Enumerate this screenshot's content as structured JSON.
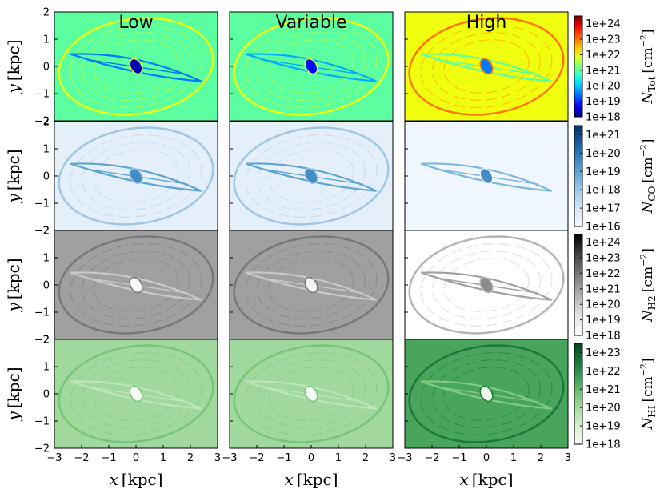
{
  "chart_data": {
    "type": "heatmap",
    "description_grid": "4 rows x 3 columns of column-density maps",
    "columns": [
      {
        "key": "low",
        "title": "Low"
      },
      {
        "key": "variable",
        "title": "Variable"
      },
      {
        "key": "high",
        "title": "High"
      }
    ],
    "rows": [
      {
        "key": "tot",
        "quantity": "N_Tot",
        "colorbar_label": "N_Tot [cm^-2]",
        "colorbar_label_main": "N",
        "colorbar_label_sub": "Tot",
        "colorbar_label_units": "[cm",
        "colorbar_label_exp": "−2",
        "colorbar_label_close": "]",
        "colormap": "jet",
        "colorbar_ticks": [
          "1e+24",
          "1e+23",
          "1e+22",
          "1e+21",
          "1e+20",
          "1e+19",
          "1e+18"
        ],
        "log_range": [
          18,
          24.5
        ],
        "panels": {
          "low": {
            "background": 21.0,
            "core": 18.3,
            "shell": 22.0,
            "filaments": 19.5
          },
          "variable": {
            "background": 21.0,
            "core": 18.8,
            "shell": 22.0,
            "filaments": 19.8
          },
          "high": {
            "background": 22.0,
            "core": 19.5,
            "shell": 23.0,
            "filaments": 21.0
          }
        }
      },
      {
        "key": "co",
        "quantity": "N_CO",
        "colorbar_label": "N_CO [cm^-2]",
        "colorbar_label_main": "N",
        "colorbar_label_sub": "CO",
        "colorbar_label_units": "[cm",
        "colorbar_label_exp": "−2",
        "colorbar_label_close": "]",
        "colormap": "Blues",
        "colorbar_ticks": [
          "1e+21",
          "1e+20",
          "1e+19",
          "1e+18",
          "1e+17",
          "1e+16"
        ],
        "log_range": [
          16,
          21.5
        ],
        "panels": {
          "low": {
            "background": 16.5,
            "core": 19.5,
            "shell": 18.0,
            "filaments": 19.0
          },
          "variable": {
            "background": 16.5,
            "core": 19.5,
            "shell": 18.0,
            "filaments": 19.0
          },
          "high": {
            "background": 16.2,
            "core": 19.5,
            "shell": 16.2,
            "filaments": 18.5
          }
        }
      },
      {
        "key": "h2",
        "quantity": "N_H2",
        "colorbar_label": "N_H2 [cm^-2]",
        "colorbar_label_main": "N",
        "colorbar_label_sub": "H2",
        "colorbar_label_units": "[cm",
        "colorbar_label_exp": "−2",
        "colorbar_label_close": "]",
        "colormap": "Greys",
        "colorbar_ticks": [
          "1e+24",
          "1e+23",
          "1e+22",
          "1e+21",
          "1e+20",
          "1e+19",
          "1e+18"
        ],
        "log_range": [
          18,
          24.5
        ],
        "panels": {
          "low": {
            "background": 21.0,
            "core": 18.3,
            "shell": 22.0,
            "filaments": 20.0
          },
          "variable": {
            "background": 21.0,
            "core": 18.5,
            "shell": 22.0,
            "filaments": 20.0
          },
          "high": {
            "background": 18.0,
            "core": 21.5,
            "shell": 20.5,
            "filaments": 21.0
          }
        }
      },
      {
        "key": "hi",
        "quantity": "N_HI",
        "colorbar_label": "N_HI [cm^-2]",
        "colorbar_label_main": "N",
        "colorbar_label_sub": "HI",
        "colorbar_label_units": "[cm",
        "colorbar_label_exp": "−2",
        "colorbar_label_close": "]",
        "colormap": "Greens",
        "colorbar_ticks": [
          "1e+23",
          "1e+22",
          "1e+21",
          "1e+20",
          "1e+19",
          "1e+18"
        ],
        "log_range": [
          18,
          23.5
        ],
        "panels": {
          "low": {
            "background": 20.0,
            "core": 18.0,
            "shell": 20.7,
            "filaments": 19.5
          },
          "variable": {
            "background": 20.0,
            "core": 18.0,
            "shell": 20.7,
            "filaments": 19.5
          },
          "high": {
            "background": 21.5,
            "core": 18.3,
            "shell": 22.5,
            "filaments": 20.5
          }
        }
      }
    ],
    "x_axis": {
      "label": "x [kpc]",
      "label_var": "x",
      "label_units": "[kpc]",
      "range": [
        -3,
        3
      ],
      "ticks": [
        -3,
        -2,
        -1,
        0,
        1,
        2,
        3
      ],
      "tick_labels": [
        "−3",
        "−2",
        "−1",
        "0",
        "1",
        "2",
        "3"
      ]
    },
    "y_axis": {
      "label": "y [kpc]",
      "label_var": "y",
      "label_units": "[kpc]",
      "range": [
        -2,
        2
      ],
      "ticks": [
        -2,
        -1,
        0,
        1,
        2
      ],
      "tick_labels": [
        "−2",
        "−1",
        "0",
        "1",
        "2"
      ]
    }
  }
}
